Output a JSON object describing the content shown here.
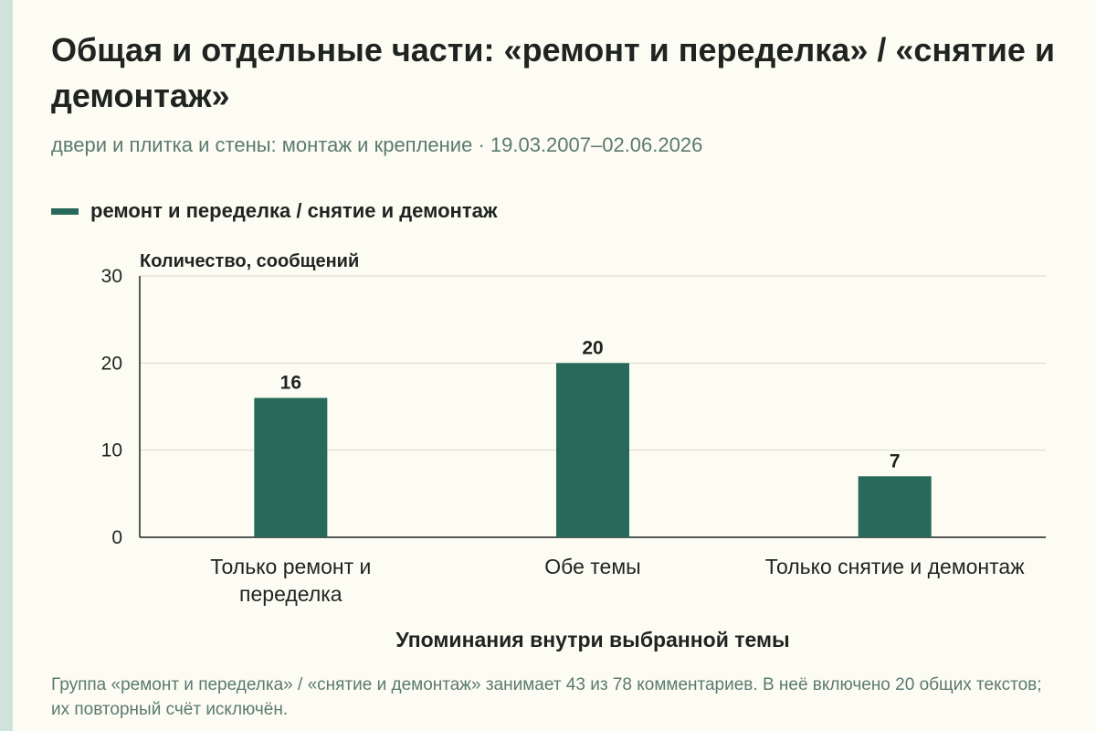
{
  "title": "Общая и отдельные части: «ремонт и переделка» / «снятие и демонтаж»",
  "subtitle": "двери и плитка и стены: монтаж и крепление · 19.03.2007–02.06.2026",
  "legend": {
    "label": "ремонт и переделка / снятие и демонтаж",
    "color": "#28695a"
  },
  "footnote": "Группа «ремонт и переделка» / «снятие и демонтаж» занимает 43 из 78 комментариев. В неё включено 20 общих текстов; их повторный счёт исключён.",
  "colors": {
    "bar": "#28695a",
    "background": "#fdfcf3",
    "grid": "#d9d9d2",
    "axis": "#1f2421",
    "muted_text": "#5b7a70",
    "accent_strip": "#cfe3dc"
  },
  "chart_data": {
    "type": "bar",
    "title": "Общая и отдельные части: «ремонт и переделка» / «снятие и демонтаж»",
    "subtitle": "двери и плитка и стены: монтаж и крепление · 19.03.2007–02.06.2026",
    "categories": [
      [
        "Только ремонт и",
        "переделка"
      ],
      [
        "Обе темы"
      ],
      [
        "Только снятие и демонтаж"
      ]
    ],
    "series": [
      {
        "name": "ремонт и переделка / снятие и демонтаж",
        "values": [
          16,
          20,
          7
        ]
      }
    ],
    "value_labels": [
      "16",
      "20",
      "7"
    ],
    "ylabel": "Количество, сообщений",
    "xlabel": "Упоминания внутри выбранной темы",
    "ylim": [
      0,
      30
    ],
    "yticks": [
      0,
      10,
      20,
      30
    ],
    "grid": true,
    "legend_position": "top-left"
  }
}
